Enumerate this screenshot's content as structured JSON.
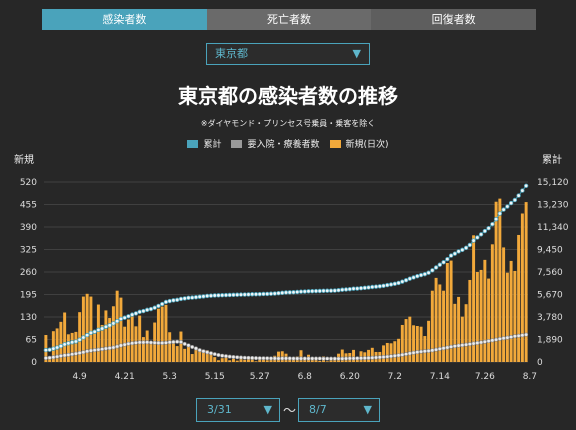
{
  "tabs": [
    {
      "label": "感染者数",
      "active": true
    },
    {
      "label": "死亡者数",
      "active": false
    },
    {
      "label": "回復者数",
      "active": false
    }
  ],
  "prefecture_select": {
    "value": "東京都",
    "arrow": "▼"
  },
  "title": "東京都の感染者数の推移",
  "note": "※ダイヤモンド・プリンセス号乗員・乗客を除く",
  "legend": [
    {
      "label": "累計",
      "color": "#4aa3bb"
    },
    {
      "label": "要入院・療養者数",
      "color": "#9a9a9a"
    },
    {
      "label": "新規(日次)",
      "color": "#f2a93b"
    }
  ],
  "date_range": {
    "start": "3/31",
    "end": "8/7",
    "separator": "〜",
    "arrow": "▼"
  },
  "chart_data": {
    "type": "bar",
    "left_axis": {
      "label": "新規",
      "ticks": [
        "0",
        "65",
        "130",
        "195",
        "260",
        "325",
        "390",
        "455",
        "520"
      ],
      "max": 520
    },
    "right_axis": {
      "label": "累計",
      "ticks": [
        "0",
        "1,890",
        "3,780",
        "5,670",
        "7,560",
        "9,450",
        "11,340",
        "13,230",
        "15,120"
      ],
      "max": 15120
    },
    "x_ticks": [
      "4.9",
      "4.21",
      "5.3",
      "5.15",
      "5.27",
      "6.8",
      "6.20",
      "7.2",
      "7.14",
      "7.26",
      "8.7"
    ],
    "x_tick_day_index": [
      9,
      21,
      33,
      45,
      57,
      69,
      81,
      93,
      105,
      117,
      129
    ],
    "daily_new": [
      78,
      13,
      89,
      97,
      116,
      143,
      80,
      84,
      87,
      144,
      189,
      197,
      189,
      91,
      166,
      107,
      149,
      127,
      161,
      206,
      186,
      102,
      123,
      132,
      103,
      134,
      72,
      91,
      59,
      114,
      154,
      160,
      165,
      86,
      58,
      46,
      88,
      38,
      47,
      23,
      36,
      39,
      29,
      34,
      30,
      14,
      5,
      11,
      13,
      5,
      9,
      4,
      10,
      6,
      8,
      14,
      2,
      11,
      15,
      5,
      12,
      18,
      30,
      31,
      24,
      13,
      10,
      16,
      34,
      12,
      21,
      6,
      14,
      3,
      16,
      2,
      8,
      12,
      24,
      36,
      25,
      26,
      35,
      14,
      31,
      28,
      35,
      41,
      29,
      29,
      48,
      55,
      54,
      60,
      67,
      107,
      124,
      131,
      106,
      104,
      102,
      75,
      119,
      206,
      243,
      224,
      206,
      286,
      293,
      168,
      188,
      131,
      167,
      237,
      366,
      260,
      266,
      295,
      241,
      340,
      463,
      472,
      331,
      258,
      292,
      263,
      367,
      429,
      462
    ],
    "cumulative": [
      1000,
      1030,
      1121,
      1216,
      1337,
      1482,
      1570,
      1655,
      1720,
      1870,
      2060,
      2260,
      2450,
      2540,
      2700,
      2810,
      2960,
      3080,
      3240,
      3430,
      3620,
      3720,
      3840,
      3980,
      4080,
      4210,
      4280,
      4380,
      4450,
      4560,
      4710,
      4870,
      5040,
      5120,
      5180,
      5220,
      5300,
      5340,
      5390,
      5410,
      5440,
      5480,
      5510,
      5550,
      5570,
      5590,
      5600,
      5610,
      5620,
      5630,
      5640,
      5650,
      5660,
      5665,
      5675,
      5690,
      5692,
      5700,
      5715,
      5720,
      5735,
      5750,
      5780,
      5810,
      5840,
      5850,
      5860,
      5880,
      5910,
      5920,
      5940,
      5950,
      5960,
      5965,
      5980,
      5985,
      5990,
      6000,
      6030,
      6070,
      6090,
      6120,
      6160,
      6170,
      6200,
      6230,
      6260,
      6300,
      6330,
      6360,
      6400,
      6460,
      6510,
      6570,
      6640,
      6750,
      6870,
      7000,
      7100,
      7210,
      7300,
      7380,
      7500,
      7700,
      7940,
      8170,
      8380,
      8640,
      8940,
      9100,
      9290,
      9420,
      9590,
      9830,
      10200,
      10460,
      10720,
      11000,
      11240,
      11580,
      12000,
      12470,
      12800,
      13060,
      13350,
      13610,
      13980,
      14400,
      14800
    ],
    "inpatients": [
      330,
      360,
      400,
      450,
      510,
      560,
      600,
      650,
      700,
      760,
      820,
      900,
      960,
      1000,
      1040,
      1080,
      1130,
      1170,
      1220,
      1300,
      1390,
      1460,
      1530,
      1580,
      1620,
      1650,
      1650,
      1660,
      1640,
      1620,
      1600,
      1600,
      1620,
      1660,
      1680,
      1700,
      1680,
      1520,
      1400,
      1260,
      1140,
      1000,
      900,
      820,
      740,
      660,
      590,
      530,
      490,
      450,
      420,
      400,
      380,
      360,
      350,
      340,
      330,
      320,
      315,
      310,
      305,
      300,
      295,
      300,
      300,
      300,
      295,
      290,
      290,
      290,
      290,
      290,
      290,
      290,
      285,
      285,
      285,
      280,
      280,
      285,
      290,
      300,
      300,
      310,
      320,
      330,
      340,
      360,
      380,
      400,
      420,
      450,
      480,
      520,
      560,
      610,
      660,
      720,
      780,
      830,
      870,
      900,
      930,
      980,
      1040,
      1100,
      1160,
      1220,
      1280,
      1330,
      1380,
      1420,
      1460,
      1500,
      1550,
      1600,
      1650,
      1700,
      1760,
      1820,
      1880,
      1940,
      2000,
      2050,
      2100,
      2160,
      2200,
      2250,
      2300
    ]
  }
}
